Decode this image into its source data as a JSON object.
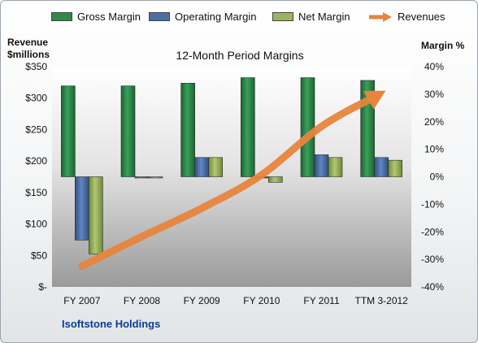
{
  "chart_data": {
    "type": "bar",
    "title": "12-Month Period Margins",
    "categories": [
      "FY 2007",
      "FY 2008",
      "FY 2009",
      "FY 2010",
      "FY 2011",
      "TTM 3-2012"
    ],
    "series": [
      {
        "name": "Gross Margin",
        "axis": "right",
        "color": "#2f8a4a",
        "values": [
          33,
          33,
          34,
          36,
          36,
          35
        ]
      },
      {
        "name": "Operating Margin",
        "axis": "right",
        "color": "#4c6fa8",
        "values": [
          -23,
          0,
          7,
          0,
          8,
          7
        ]
      },
      {
        "name": "Net Margin",
        "axis": "right",
        "color": "#9bb55a",
        "values": [
          -28,
          0,
          7,
          -2,
          7,
          6
        ]
      },
      {
        "name": "Revenues",
        "axis": "left",
        "render": "arrow",
        "color": "#e8843c",
        "values": [
          33,
          80,
          125,
          178,
          255,
          308
        ]
      }
    ],
    "left_axis": {
      "label": "Revenue $millions",
      "range": [
        0,
        350
      ],
      "ticks": [
        0,
        50,
        100,
        150,
        200,
        250,
        300,
        350
      ],
      "tick_labels": [
        "$-",
        "$50",
        "$100",
        "$150",
        "$200",
        "$250",
        "$300",
        "$350"
      ]
    },
    "right_axis": {
      "label": "Margin %",
      "range": [
        -40,
        40
      ],
      "ticks": [
        -40,
        -30,
        -20,
        -10,
        0,
        10,
        20,
        30,
        40
      ],
      "tick_labels": [
        "-40%",
        "-30%",
        "-20%",
        "-10%",
        "0%",
        "10%",
        "20%",
        "30%",
        "40%"
      ]
    },
    "grid": false,
    "legend_position": "top"
  },
  "legend": [
    {
      "label": "Gross Margin",
      "style": "green"
    },
    {
      "label": "Operating Margin",
      "style": "blue"
    },
    {
      "label": "Net Margin",
      "style": "olive"
    },
    {
      "label": "Revenues",
      "style": "arrow"
    }
  ],
  "labels": {
    "left_axis_line1": "Revenue",
    "left_axis_line2": "$millions",
    "right_axis": "Margin %",
    "company": "Isoftstone Holdings"
  }
}
